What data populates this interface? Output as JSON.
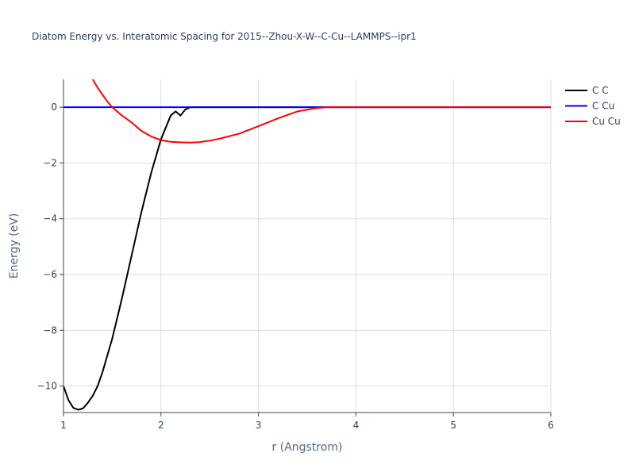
{
  "chart_data": {
    "type": "line",
    "title": "Diatom Energy vs. Interatomic Spacing for 2015--Zhou-X-W--C-Cu--LAMMPS--ipr1",
    "xlabel": "r (Angstrom)",
    "ylabel": "Energy (eV)",
    "xlim": [
      1,
      6
    ],
    "ylim": [
      -10.95,
      1.0
    ],
    "x_ticks": [
      1,
      2,
      3,
      4,
      5,
      6
    ],
    "x_tick_labels": [
      "1",
      "2",
      "3",
      "4",
      "5",
      "6"
    ],
    "y_ticks": [
      0,
      -2,
      -4,
      -6,
      -8,
      -10
    ],
    "y_tick_labels": [
      "0",
      "−2",
      "−4",
      "−6",
      "−8",
      "−10"
    ],
    "grid": true,
    "legend_position": "top-right",
    "series": [
      {
        "name": "C C",
        "color": "#000000",
        "x": [
          1.0,
          1.05,
          1.1,
          1.15,
          1.2,
          1.25,
          1.3,
          1.35,
          1.4,
          1.5,
          1.6,
          1.7,
          1.8,
          1.9,
          2.0,
          2.1,
          2.15,
          2.2,
          2.25,
          2.3,
          2.35,
          2.4,
          3.0,
          4.0,
          5.0,
          6.0
        ],
        "y": [
          -10.0,
          -10.5,
          -10.78,
          -10.85,
          -10.8,
          -10.6,
          -10.35,
          -10.0,
          -9.5,
          -8.3,
          -6.85,
          -5.3,
          -3.75,
          -2.35,
          -1.15,
          -0.3,
          -0.15,
          -0.3,
          -0.08,
          0.0,
          0.0,
          0.0,
          0.0,
          0.0,
          0.0,
          0.0
        ]
      },
      {
        "name": "C Cu",
        "color": "#0000ff",
        "x": [
          1.0,
          2.0,
          3.0,
          4.0,
          5.0,
          6.0
        ],
        "y": [
          0,
          0,
          0,
          0,
          0,
          0
        ]
      },
      {
        "name": "Cu Cu",
        "color": "#ff0000",
        "x": [
          1.3,
          1.35,
          1.4,
          1.45,
          1.5,
          1.55,
          1.6,
          1.7,
          1.8,
          1.9,
          2.0,
          2.1,
          2.2,
          2.3,
          2.4,
          2.5,
          2.6,
          2.8,
          3.0,
          3.2,
          3.4,
          3.6,
          3.7,
          3.8,
          4.0,
          5.0,
          6.0
        ],
        "y": [
          1.0,
          0.7,
          0.45,
          0.2,
          0.0,
          -0.15,
          -0.3,
          -0.55,
          -0.85,
          -1.05,
          -1.18,
          -1.24,
          -1.26,
          -1.27,
          -1.25,
          -1.2,
          -1.13,
          -0.95,
          -0.68,
          -0.4,
          -0.15,
          -0.03,
          0.0,
          0.0,
          0.0,
          0.0,
          0.0
        ]
      }
    ]
  }
}
